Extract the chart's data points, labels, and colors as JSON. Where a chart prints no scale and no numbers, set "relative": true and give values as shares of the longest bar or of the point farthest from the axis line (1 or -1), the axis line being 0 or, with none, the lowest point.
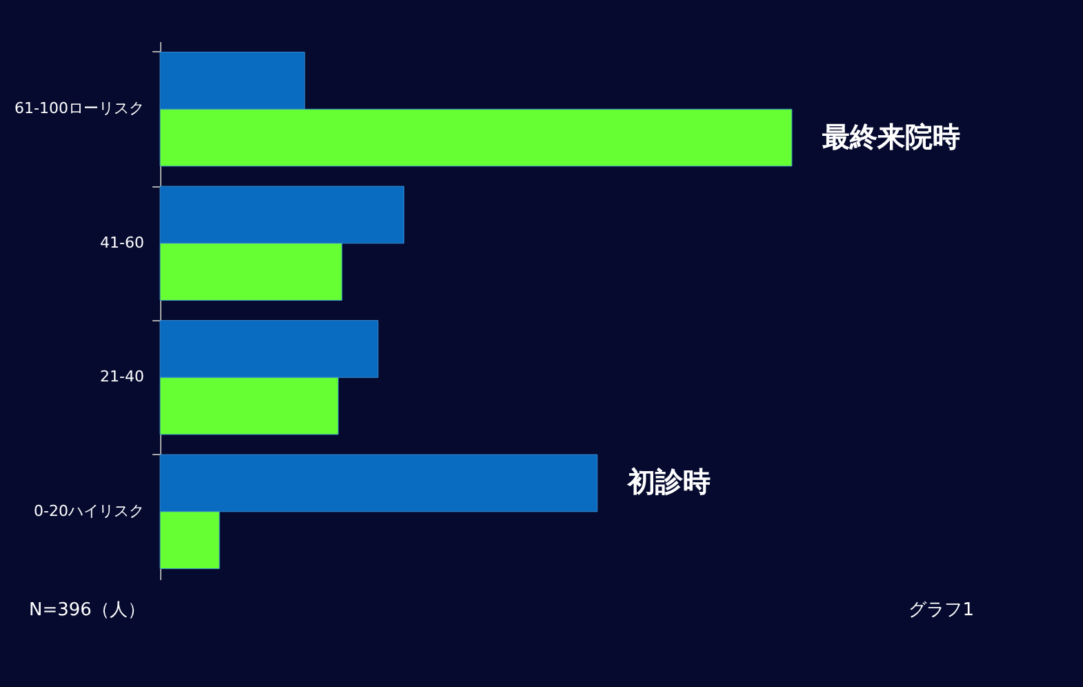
{
  "chart_data": {
    "type": "bar",
    "orientation": "horizontal",
    "relative": true,
    "legend": false,
    "categories": [
      "61-100ローリスク",
      "41-60",
      "21-40",
      "0-20ハイリスク"
    ],
    "series": [
      {
        "name": "初診時",
        "color": "#0a6cc0",
        "values": [
          0.229,
          0.386,
          0.345,
          0.692
        ]
      },
      {
        "name": "最終来院時",
        "color": "#66ff33",
        "values": [
          1,
          0.288,
          0.282,
          0.094
        ]
      }
    ],
    "annotations": [
      "N=396（人）",
      "グラフ1"
    ]
  }
}
